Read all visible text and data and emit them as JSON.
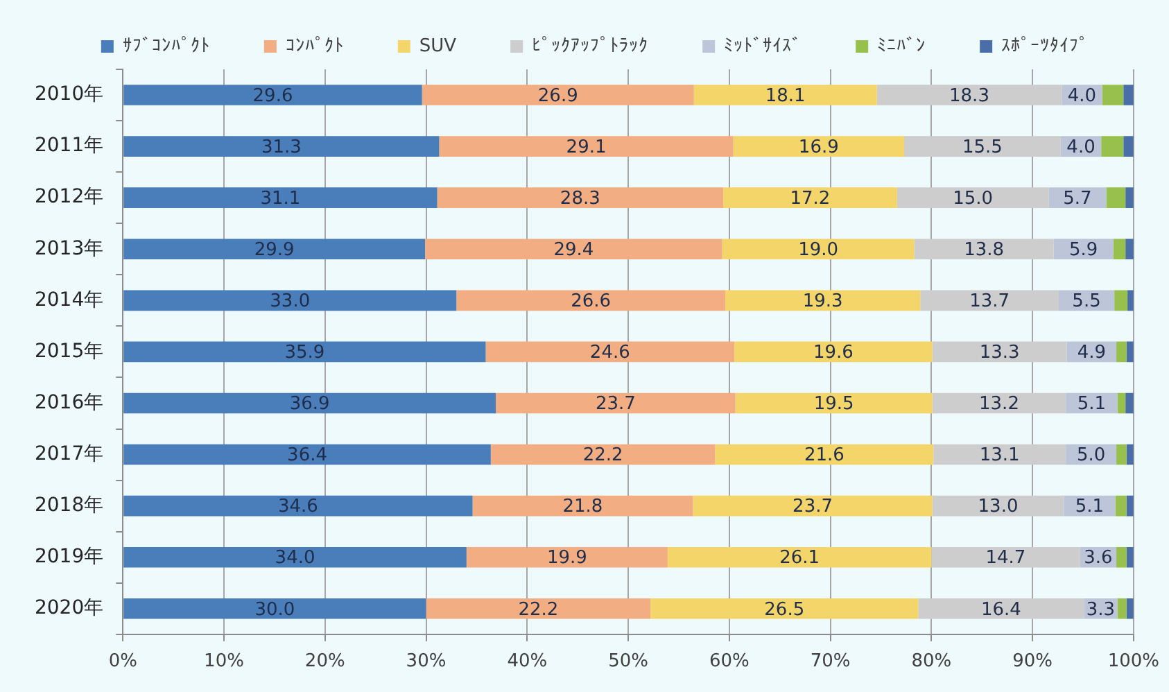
{
  "chart_data": {
    "type": "bar",
    "orientation": "horizontal",
    "stacked": true,
    "categories": [
      "2010年",
      "2011年",
      "2012年",
      "2013年",
      "2014年",
      "2015年",
      "2016年",
      "2017年",
      "2018年",
      "2019年",
      "2020年"
    ],
    "series": [
      {
        "name": "ｻﾌﾞｺﾝﾊﾟｸﾄ",
        "color": "#4a7ebb",
        "values": [
          29.6,
          31.3,
          31.1,
          29.9,
          33.0,
          35.9,
          36.9,
          36.4,
          34.6,
          34.0,
          30.0
        ],
        "value_labels": [
          "29.6",
          "31.3",
          "31.1",
          "29.9",
          "33.0",
          "35.9",
          "36.9",
          "36.4",
          "34.6",
          "34.0",
          "30.0"
        ]
      },
      {
        "name": "ｺﾝﾊﾟｸﾄ",
        "color": "#f2ae82",
        "values": [
          26.9,
          29.1,
          28.3,
          29.4,
          26.6,
          24.6,
          23.7,
          22.2,
          21.8,
          19.9,
          22.2
        ],
        "value_labels": [
          "26.9",
          "29.1",
          "28.3",
          "29.4",
          "26.6",
          "24.6",
          "23.7",
          "22.2",
          "21.8",
          "19.9",
          "22.2"
        ]
      },
      {
        "name": "SUV",
        "color": "#f3d56a",
        "values": [
          18.1,
          16.9,
          17.2,
          19.0,
          19.3,
          19.6,
          19.5,
          21.6,
          23.7,
          26.1,
          26.5
        ],
        "value_labels": [
          "18.1",
          "16.9",
          "17.2",
          "19.0",
          "19.3",
          "19.6",
          "19.5",
          "21.6",
          "23.7",
          "26.1",
          "26.5"
        ]
      },
      {
        "name": "ﾋﾟｯｸｱｯﾌﾟﾄﾗｯｸ",
        "color": "#cdcdcd",
        "values": [
          18.3,
          15.5,
          15.0,
          13.8,
          13.7,
          13.3,
          13.2,
          13.1,
          13.0,
          14.7,
          16.4
        ],
        "value_labels": [
          "18.3",
          "15.5",
          "15.0",
          "13.8",
          "13.7",
          "13.3",
          "13.2",
          "13.1",
          "13.0",
          "14.7",
          "16.4"
        ]
      },
      {
        "name": "ﾐｯﾄﾞｻｲｽﾞ",
        "color": "#bcc6d8",
        "values": [
          4.0,
          4.0,
          5.7,
          5.9,
          5.5,
          4.9,
          5.1,
          5.0,
          5.1,
          3.6,
          3.3
        ],
        "value_labels": [
          "4.0",
          "4.0",
          "5.7",
          "5.9",
          "5.5",
          "4.9",
          "5.1",
          "5.0",
          "5.1",
          "3.6",
          "3.3"
        ]
      },
      {
        "name": "ﾐﾆﾊﾞﾝ",
        "color": "#98c04c",
        "values": [
          2.1,
          2.2,
          1.9,
          1.2,
          1.3,
          1.0,
          0.8,
          1.0,
          1.1,
          1.0,
          0.9
        ]
      },
      {
        "name": "ｽﾎﾟｰﾂﾀｲﾌﾟ",
        "color": "#4a6ea8",
        "values": [
          1.0,
          1.0,
          0.8,
          0.8,
          0.6,
          0.7,
          0.8,
          0.7,
          0.7,
          0.7,
          0.7
        ]
      }
    ],
    "xlim": [
      0,
      100
    ],
    "xticks": [
      {
        "value": 0,
        "label": "0%"
      },
      {
        "value": 10,
        "label": "10%"
      },
      {
        "value": 20,
        "label": "20%"
      },
      {
        "value": 30,
        "label": "30%"
      },
      {
        "value": 40,
        "label": "40%"
      },
      {
        "value": 50,
        "label": "50%"
      },
      {
        "value": 60,
        "label": "60%"
      },
      {
        "value": 70,
        "label": "70%"
      },
      {
        "value": 80,
        "label": "80%"
      },
      {
        "value": 90,
        "label": "90%"
      },
      {
        "value": 100,
        "label": "100%"
      }
    ],
    "grid": "x",
    "legend": "top"
  }
}
